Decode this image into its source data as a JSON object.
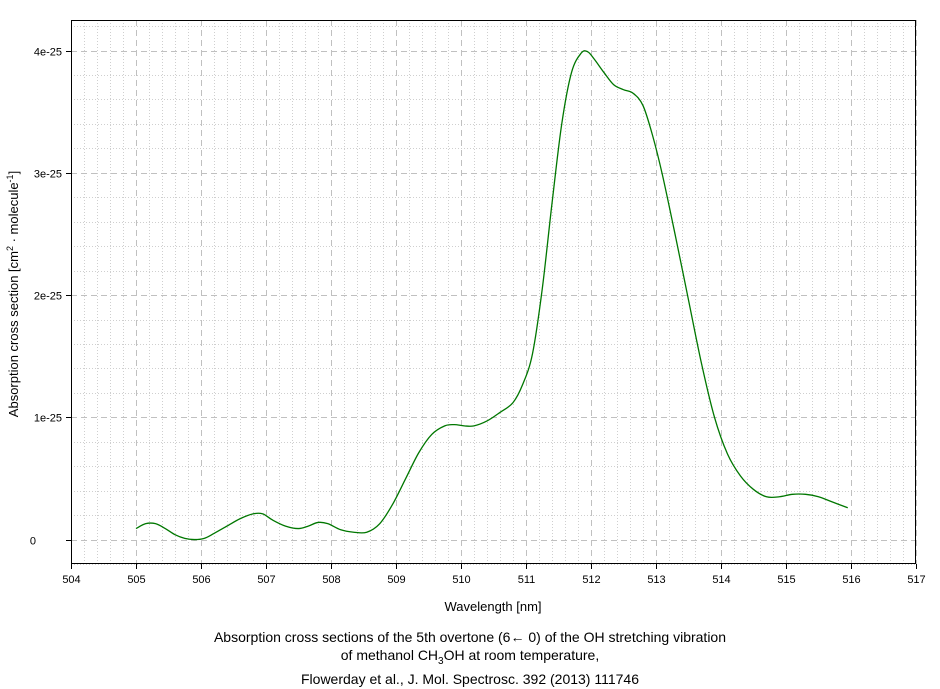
{
  "chart_data": {
    "type": "line",
    "xlabel": "Wavelength [nm]",
    "ylabel_prefix": "Absorption cross section [cm",
    "ylabel_sup1": "2",
    "ylabel_mid": " · molecule",
    "ylabel_sup2": "-1",
    "ylabel_suffix": "]",
    "xlim": [
      504,
      517
    ],
    "ylim": [
      -0.2,
      4.25
    ],
    "y_exponent_note": "values in units of 1e-25",
    "x_ticks": [
      504,
      505,
      506,
      507,
      508,
      509,
      510,
      511,
      512,
      513,
      514,
      515,
      516,
      517
    ],
    "y_ticks": [
      {
        "value": 0,
        "label": "0"
      },
      {
        "value": 1,
        "label": "1e-25"
      },
      {
        "value": 2,
        "label": "2e-25"
      },
      {
        "value": 3,
        "label": "3e-25"
      },
      {
        "value": 4,
        "label": "4e-25"
      }
    ],
    "grid": true,
    "series": [
      {
        "color": "#007700",
        "x": [
          505.0,
          505.15,
          505.3,
          505.45,
          505.6,
          505.75,
          505.9,
          506.05,
          506.2,
          506.4,
          506.6,
          506.8,
          506.95,
          507.1,
          507.3,
          507.5,
          507.65,
          507.8,
          507.95,
          508.15,
          508.35,
          508.55,
          508.75,
          508.95,
          509.15,
          509.35,
          509.55,
          509.75,
          509.9,
          510.05,
          510.2,
          510.4,
          510.6,
          510.8,
          510.95,
          511.1,
          511.25,
          511.4,
          511.55,
          511.7,
          511.85,
          511.95,
          512.05,
          512.2,
          512.35,
          512.5,
          512.65,
          512.8,
          512.95,
          513.1,
          513.3,
          513.5,
          513.7,
          513.9,
          514.1,
          514.3,
          514.5,
          514.7,
          514.9,
          515.1,
          515.3,
          515.5,
          515.7,
          515.95
        ],
        "y": [
          0.09,
          0.13,
          0.13,
          0.09,
          0.04,
          0.01,
          0.0,
          0.01,
          0.05,
          0.11,
          0.17,
          0.21,
          0.21,
          0.16,
          0.11,
          0.09,
          0.11,
          0.14,
          0.13,
          0.08,
          0.06,
          0.06,
          0.13,
          0.29,
          0.5,
          0.71,
          0.86,
          0.93,
          0.94,
          0.93,
          0.93,
          0.97,
          1.04,
          1.12,
          1.27,
          1.52,
          2.05,
          2.75,
          3.4,
          3.82,
          3.98,
          3.99,
          3.93,
          3.82,
          3.72,
          3.68,
          3.65,
          3.55,
          3.3,
          2.98,
          2.48,
          1.96,
          1.44,
          1.0,
          0.7,
          0.52,
          0.41,
          0.35,
          0.35,
          0.37,
          0.37,
          0.35,
          0.31,
          0.26
        ]
      }
    ]
  },
  "caption": {
    "line1": "Absorption cross sections of the 5th overtone (6← 0) of the OH stretching vibration",
    "line2_prefix": "of methanol CH",
    "line2_sub": "3",
    "line2_suffix": "OH at room temperature,",
    "line3": "Flowerday et al., J. Mol. Spectrosc. 392 (2013) 111746"
  }
}
